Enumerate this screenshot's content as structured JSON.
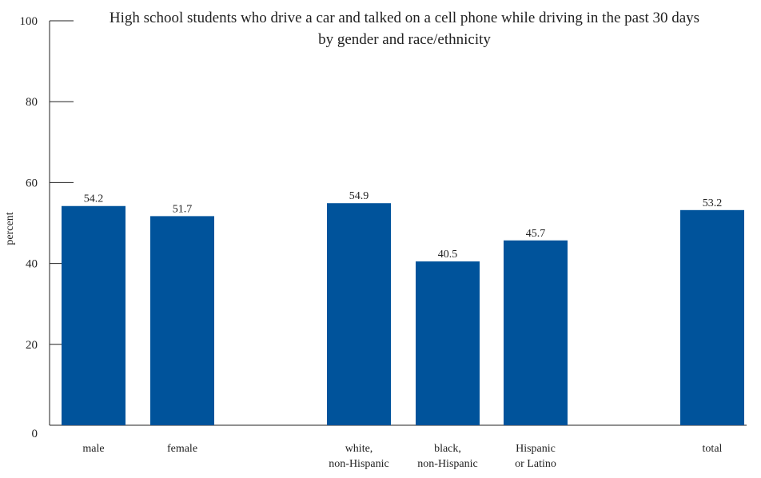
{
  "chart_data": {
    "type": "bar",
    "title": "High school students who drive a car and talked on a cell phone while driving in the past 30 days by gender and race/ethnicity",
    "title_lines": [
      "High school students who drive a car and talked on a cell phone while driving in the past 30 days",
      "by gender and race/ethnicity"
    ],
    "xlabel": "",
    "ylabel": "percent",
    "ylim": [
      0,
      100
    ],
    "yticks": [
      0,
      20,
      40,
      60,
      80,
      100
    ],
    "grid": false,
    "categories": [
      "male",
      "female",
      "white, non-Hispanic",
      "black, non-Hispanic",
      "Hispanic or Latino",
      "total"
    ],
    "category_lines": [
      [
        "male"
      ],
      [
        "female"
      ],
      [
        "white,",
        "non-Hispanic"
      ],
      [
        "black,",
        "non-Hispanic"
      ],
      [
        "Hispanic",
        "or Latino"
      ],
      [
        "total"
      ]
    ],
    "values": [
      54.2,
      51.7,
      54.9,
      40.5,
      45.7,
      53.2
    ],
    "value_labels": [
      "54.2",
      "51.7",
      "54.9",
      "40.5",
      "45.7",
      "53.2"
    ],
    "groups": [
      [
        "male",
        "female"
      ],
      [
        "white, non-Hispanic",
        "black, non-Hispanic",
        "Hispanic or Latino"
      ],
      [
        "total"
      ]
    ],
    "bar_color": "#00539b",
    "axis_color": "#222222"
  }
}
